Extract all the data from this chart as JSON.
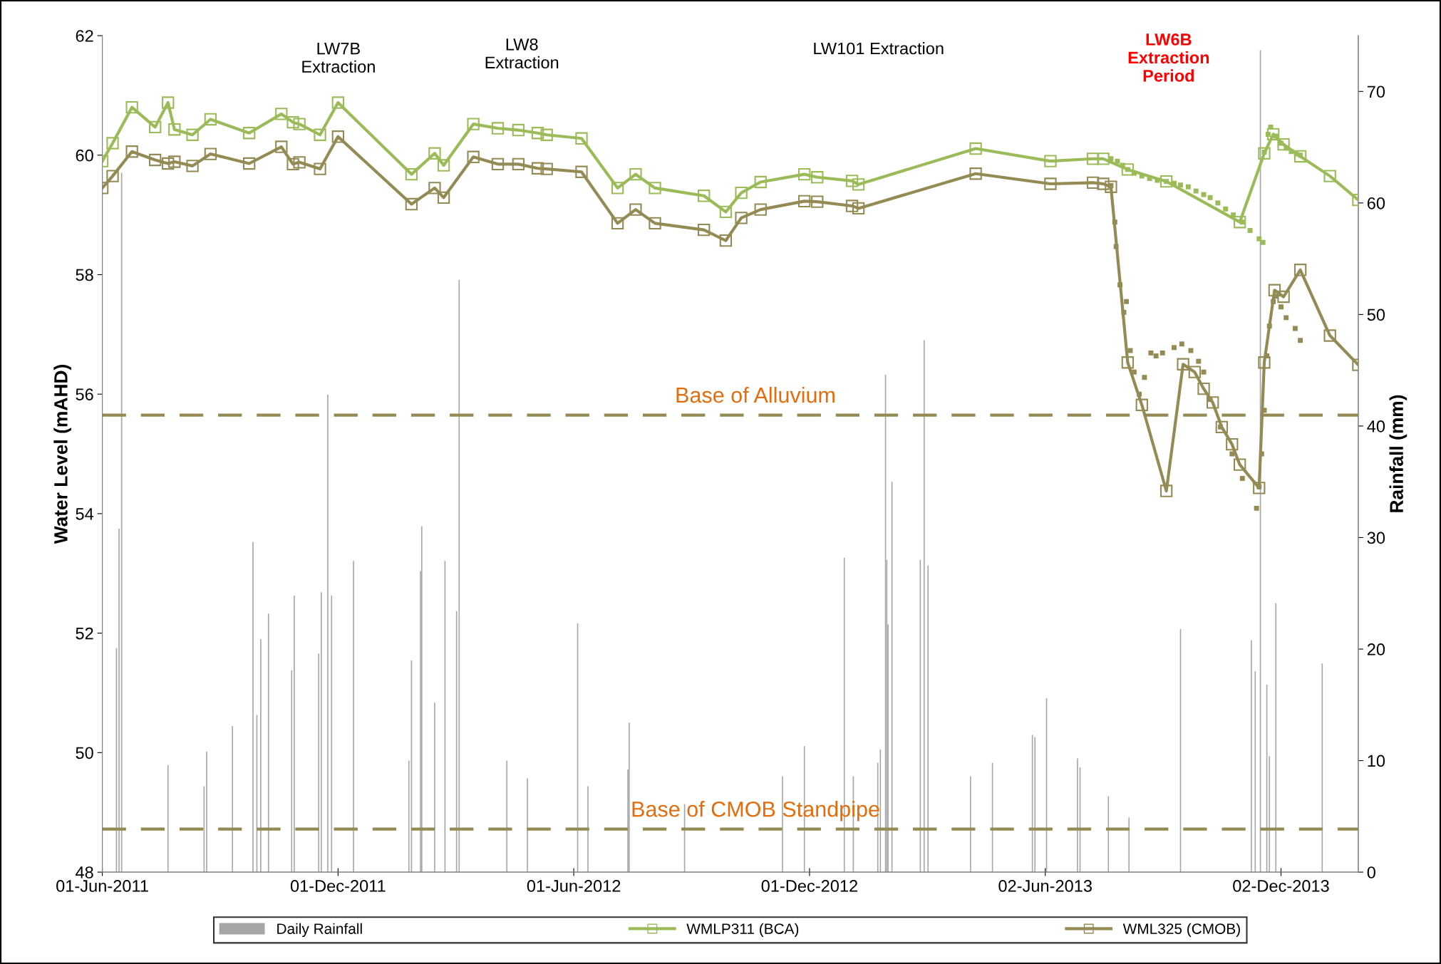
{
  "chart_data": {
    "type": "line",
    "ylabel": "Water Level (mAHD)",
    "y2label": "Rainfall (mm)",
    "xlim": [
      "2011-06-01",
      "2014-01-31"
    ],
    "xticks": [
      {
        "value": "2011-06-01",
        "label": "01-Jun-2011"
      },
      {
        "value": "2011-12-01",
        "label": "01-Dec-2011"
      },
      {
        "value": "2012-06-01",
        "label": "01-Jun-2012"
      },
      {
        "value": "2012-12-01",
        "label": "01-Dec-2012"
      },
      {
        "value": "2013-06-02",
        "label": "02-Jun-2013"
      },
      {
        "value": "2013-12-02",
        "label": "02-Dec-2013"
      }
    ],
    "ylim": [
      48,
      62
    ],
    "yticks": [
      48,
      50,
      52,
      54,
      56,
      58,
      60,
      62
    ],
    "y2lim": [
      0,
      75
    ],
    "y2ticks": [
      0,
      10,
      20,
      30,
      40,
      50,
      60,
      70
    ],
    "grid": false,
    "legend": "bottom",
    "marker": "square",
    "series": [
      {
        "name": "Daily Rainfall",
        "type": "bar",
        "axis": "y2",
        "color": "#a6a6a6",
        "x": [
          "2011-06-12",
          "2011-06-14",
          "2011-06-16",
          "2011-07-22",
          "2011-08-19",
          "2011-08-21",
          "2011-09-10",
          "2011-09-26",
          "2011-09-29",
          "2011-10-02",
          "2011-10-08",
          "2011-10-26",
          "2011-10-28",
          "2011-11-16",
          "2011-11-18",
          "2011-11-23",
          "2011-11-26",
          "2011-12-13",
          "2012-01-25",
          "2012-01-27",
          "2012-02-03",
          "2012-02-04",
          "2012-02-14",
          "2012-02-22",
          "2012-03-02",
          "2012-03-04",
          "2012-04-10",
          "2012-04-26",
          "2012-06-04",
          "2012-06-12",
          "2012-07-13",
          "2012-07-14",
          "2012-08-26",
          "2012-11-10",
          "2012-11-27",
          "2012-12-28",
          "2013-01-04",
          "2013-01-23",
          "2013-01-25",
          "2013-01-29",
          "2013-01-30",
          "2013-01-31",
          "2013-02-03",
          "2013-02-25",
          "2013-02-28",
          "2013-03-03",
          "2013-04-05",
          "2013-04-22",
          "2013-05-23",
          "2013-05-25",
          "2013-06-03",
          "2013-06-27",
          "2013-06-29",
          "2013-07-21",
          "2013-08-06",
          "2013-09-15",
          "2013-11-09",
          "2013-11-12",
          "2013-11-16",
          "2013-11-21",
          "2013-11-23",
          "2013-11-28",
          "2014-01-03"
        ],
        "values": [
          20.1,
          30.8,
          62.7,
          9.6,
          7.7,
          10.8,
          13.1,
          29.6,
          14.1,
          20.9,
          23.2,
          18.1,
          24.8,
          19.6,
          25.1,
          42.8,
          24.8,
          27.9,
          10.0,
          19.0,
          27.0,
          31.0,
          15.2,
          27.9,
          23.4,
          53.1,
          10.0,
          8.4,
          22.3,
          7.7,
          9.2,
          13.4,
          6.1,
          8.6,
          11.3,
          28.2,
          8.6,
          9.8,
          11.0,
          44.6,
          28.0,
          22.2,
          35.0,
          28.0,
          47.7,
          27.5,
          8.6,
          9.8,
          12.3,
          12.1,
          15.6,
          10.2,
          9.4,
          6.8,
          4.9,
          21.8,
          20.8,
          18.0,
          73.7,
          16.8,
          10.4,
          24.1,
          18.7
        ]
      },
      {
        "name": "WMLP311 (BCA)",
        "color": "#9bbb59",
        "x": [
          "2011-06-01",
          "2011-06-09",
          "2011-06-24",
          "2011-07-12",
          "2011-07-22",
          "2011-07-27",
          "2011-08-10",
          "2011-08-24",
          "2011-09-23",
          "2011-10-18",
          "2011-10-27",
          "2011-11-01",
          "2011-11-17",
          "2011-12-01",
          "2012-01-27",
          "2012-02-14",
          "2012-02-21",
          "2012-03-15",
          "2012-04-03",
          "2012-04-19",
          "2012-05-04",
          "2012-05-11",
          "2012-06-07",
          "2012-07-05",
          "2012-07-19",
          "2012-08-03",
          "2012-09-10",
          "2012-09-27",
          "2012-10-09",
          "2012-10-24",
          "2012-11-27",
          "2012-12-07",
          "2013-01-03",
          "2013-01-08",
          "2013-04-09",
          "2013-06-06",
          "2013-07-09",
          "2013-07-17",
          "2013-08-05",
          "2013-09-04",
          "2013-10-31",
          "2013-11-19",
          "2013-11-26",
          "2013-12-04",
          "2013-12-17",
          "2014-01-09",
          "2014-01-31"
        ],
        "values": [
          59.9,
          60.2,
          60.8,
          60.47,
          60.88,
          60.43,
          60.34,
          60.6,
          60.37,
          60.69,
          60.55,
          60.52,
          60.34,
          60.88,
          59.68,
          60.03,
          59.83,
          60.52,
          60.45,
          60.42,
          60.37,
          60.34,
          60.28,
          59.45,
          59.68,
          59.45,
          59.32,
          59.05,
          59.37,
          59.55,
          59.68,
          59.63,
          59.57,
          59.51,
          60.11,
          59.9,
          59.94,
          59.94,
          59.76,
          59.56,
          58.88,
          60.03,
          60.35,
          60.18,
          59.98,
          59.65,
          59.25
        ]
      },
      {
        "name": "WML325 (CMOB)",
        "color": "#948a54",
        "x": [
          "2011-06-01",
          "2011-06-09",
          "2011-06-24",
          "2011-07-12",
          "2011-07-22",
          "2011-07-27",
          "2011-08-10",
          "2011-08-24",
          "2011-09-23",
          "2011-10-18",
          "2011-10-27",
          "2011-11-01",
          "2011-11-17",
          "2011-12-01",
          "2012-01-27",
          "2012-02-14",
          "2012-02-21",
          "2012-03-15",
          "2012-04-03",
          "2012-04-19",
          "2012-05-04",
          "2012-05-11",
          "2012-06-07",
          "2012-07-05",
          "2012-07-19",
          "2012-08-03",
          "2012-09-10",
          "2012-09-27",
          "2012-10-09",
          "2012-10-24",
          "2012-11-27",
          "2012-12-07",
          "2013-01-03",
          "2013-01-08",
          "2013-04-09",
          "2013-06-06",
          "2013-07-09",
          "2013-07-17",
          "2013-07-23",
          "2013-08-05",
          "2013-08-16",
          "2013-09-04",
          "2013-09-17",
          "2013-09-26",
          "2013-10-03",
          "2013-10-10",
          "2013-10-17",
          "2013-10-25",
          "2013-10-31",
          "2013-11-15",
          "2013-11-19",
          "2013-11-27",
          "2013-12-04",
          "2013-12-17",
          "2014-01-09",
          "2014-01-31"
        ],
        "values": [
          59.45,
          59.65,
          60.06,
          59.92,
          59.86,
          59.89,
          59.82,
          60.02,
          59.86,
          60.14,
          59.85,
          59.88,
          59.77,
          60.31,
          59.18,
          59.45,
          59.29,
          59.97,
          59.85,
          59.85,
          59.78,
          59.77,
          59.72,
          58.86,
          59.09,
          58.86,
          58.75,
          58.57,
          58.95,
          59.09,
          59.23,
          59.22,
          59.15,
          59.11,
          59.69,
          59.52,
          59.54,
          59.52,
          59.47,
          56.53,
          55.82,
          54.38,
          56.5,
          56.37,
          56.09,
          55.86,
          55.45,
          55.16,
          54.82,
          54.43,
          56.53,
          57.74,
          57.63,
          58.08,
          56.98,
          56.49
        ]
      },
      {
        "type": "scatter",
        "color": "#9bbb59",
        "x": [
          "2013-07-23",
          "2013-07-28",
          "2013-08-01",
          "2013-08-05",
          "2013-08-10",
          "2013-08-16",
          "2013-08-22",
          "2013-08-28",
          "2013-09-04",
          "2013-09-10",
          "2013-09-15",
          "2013-09-21",
          "2013-09-27",
          "2013-10-03",
          "2013-10-08",
          "2013-10-14",
          "2013-10-20",
          "2013-10-26",
          "2013-11-02",
          "2013-11-08",
          "2013-11-15",
          "2013-11-18",
          "2013-11-19",
          "2013-11-22",
          "2013-11-24",
          "2013-11-28",
          "2013-12-02",
          "2013-12-06",
          "2013-12-10",
          "2013-12-14",
          "2013-12-17"
        ],
        "values": [
          59.94,
          59.9,
          59.83,
          59.76,
          59.7,
          59.65,
          59.61,
          59.58,
          59.56,
          59.53,
          59.5,
          59.47,
          59.4,
          59.34,
          59.29,
          59.2,
          59.1,
          59.0,
          58.88,
          58.74,
          58.6,
          58.54,
          60.05,
          60.35,
          60.47,
          60.32,
          60.2,
          60.12,
          60.06,
          60.02,
          60.0
        ]
      },
      {
        "type": "scatter",
        "color": "#948a54",
        "x": [
          "2013-07-23",
          "2013-07-26",
          "2013-07-27",
          "2013-07-30",
          "2013-08-02",
          "2013-08-04",
          "2013-08-07",
          "2013-08-10",
          "2013-08-14",
          "2013-08-18",
          "2013-08-23",
          "2013-08-27",
          "2013-09-01",
          "2013-09-10",
          "2013-09-16",
          "2013-09-23",
          "2013-09-29",
          "2013-10-03",
          "2013-10-08",
          "2013-10-16",
          "2013-10-25",
          "2013-11-02",
          "2013-11-13",
          "2013-11-15",
          "2013-11-17",
          "2013-11-19",
          "2013-11-21",
          "2013-11-23",
          "2013-11-26",
          "2013-11-28",
          "2013-12-02",
          "2013-12-06",
          "2013-12-13",
          "2013-12-17"
        ],
        "values": [
          59.49,
          58.88,
          58.47,
          57.83,
          57.37,
          57.55,
          56.73,
          56.37,
          56.0,
          56.28,
          56.69,
          56.64,
          56.69,
          56.78,
          56.84,
          56.73,
          56.55,
          56.37,
          55.91,
          55.45,
          55.0,
          54.59,
          54.09,
          54.45,
          55.0,
          55.73,
          56.64,
          57.14,
          57.55,
          57.64,
          57.46,
          57.28,
          57.1,
          56.9
        ]
      }
    ],
    "ref_lines": [
      {
        "axis": "y",
        "value": 55.65,
        "label": "Base of Alluvium",
        "color": "#948a54",
        "line_style": "dashed"
      },
      {
        "axis": "y",
        "value": 48.72,
        "label": "Base of CMOB Standpipe",
        "color": "#948a54",
        "line_style": "dashed"
      }
    ],
    "annotations": [
      "LW7B\nExtraction",
      "LW8\nExtraction",
      "LW101 Extraction",
      "LW6B\nExtraction\nPeriod"
    ]
  }
}
